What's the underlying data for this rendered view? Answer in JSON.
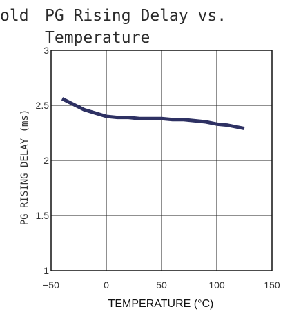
{
  "page": {
    "title_partial": "old",
    "title_line1": "PG Rising Delay vs.",
    "title_line2": "Temperature"
  },
  "chart_data": {
    "type": "line",
    "title": "PG Rising Delay vs. Temperature",
    "xlabel": "TEMPERATURE (°C)",
    "ylabel": "PG RISING DELAY (ms)",
    "xlim": [
      -50,
      150
    ],
    "ylim": [
      1,
      3
    ],
    "xticks": [
      -50,
      0,
      50,
      100,
      150
    ],
    "yticks": [
      1,
      1.5,
      2,
      2.5,
      3
    ],
    "xtick_labels": [
      "−50",
      "0",
      "50",
      "100",
      "150"
    ],
    "ytick_labels": [
      "1",
      "1.5",
      "2",
      "2.5",
      "3"
    ],
    "grid": true,
    "series": [
      {
        "color": "#2e3163",
        "x": [
          -40,
          -30,
          -20,
          -10,
          0,
          10,
          20,
          30,
          40,
          50,
          60,
          70,
          80,
          90,
          100,
          110,
          125
        ],
        "y": [
          2.56,
          2.51,
          2.46,
          2.43,
          2.4,
          2.39,
          2.39,
          2.38,
          2.38,
          2.38,
          2.37,
          2.37,
          2.36,
          2.35,
          2.33,
          2.32,
          2.29
        ]
      }
    ]
  }
}
